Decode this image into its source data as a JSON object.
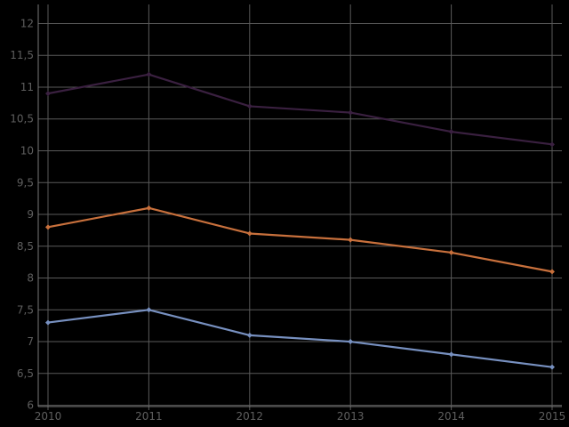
{
  "chart_data": {
    "type": "line",
    "x": [
      "2010",
      "2011",
      "2012",
      "2013",
      "2014",
      "2015"
    ],
    "x_tick_labels": [
      "2010",
      "2011",
      "2012",
      "2013",
      "2014",
      "2015"
    ],
    "y_tick_labels": [
      "6",
      "6,5",
      "7",
      "7,5",
      "8",
      "8,5",
      "9",
      "9,5",
      "10",
      "10,5",
      "11",
      "11,5",
      "12"
    ],
    "y_ticks": [
      6,
      6.5,
      7,
      7.5,
      8,
      8.5,
      9,
      9.5,
      10,
      10.5,
      11,
      11.5,
      12
    ],
    "ylim": [
      5.98,
      12.3
    ],
    "grid": true,
    "title": "",
    "xlabel": "",
    "ylabel": "",
    "series": [
      {
        "color": "#3a2040",
        "values": [
          10.9,
          11.2,
          10.7,
          10.6,
          10.3,
          10.1
        ]
      },
      {
        "color": "#c8703c",
        "values": [
          8.8,
          9.1,
          8.7,
          8.6,
          8.4,
          8.1
        ]
      },
      {
        "color": "#7790c0",
        "values": [
          7.3,
          7.5,
          7.1,
          7.0,
          6.8,
          6.6
        ]
      }
    ]
  }
}
